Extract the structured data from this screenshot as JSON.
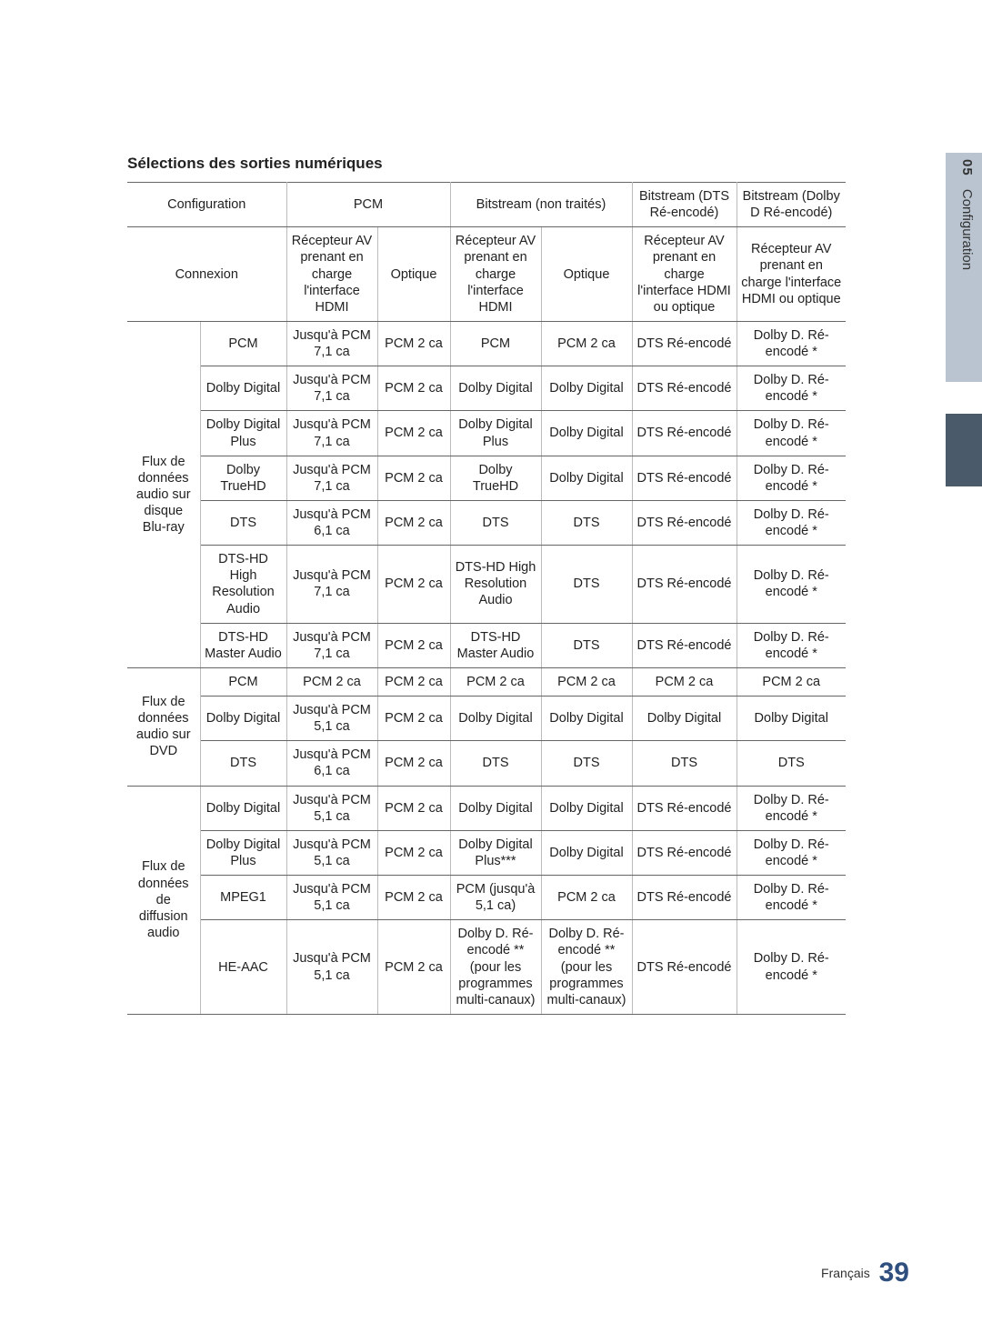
{
  "sideTab": {
    "num": "05",
    "label": "Configuration"
  },
  "title": "Sélections des sorties numériques",
  "footer": {
    "lang": "Français",
    "page": "39"
  },
  "head1": {
    "config": "Configuration",
    "pcm": "PCM",
    "bitstreamNT": "Bitstream (non traités)",
    "bitstreamDTS": "Bitstream (DTS Ré-encodé)",
    "bitstreamDolby": "Bitstream (Dolby D Ré-encodé)"
  },
  "head2": {
    "connexion": "Connexion",
    "hdmi": "Récepteur AV prenant en charge l'interface HDMI",
    "optique": "Optique",
    "hdmiOpt": "Récepteur AV prenant en charge l'interface HDMI ou optique",
    "hdmiOpt2": "Récepteur AV prenant en charge l'interface HDMI ou optique"
  },
  "groups": [
    {
      "label": "Flux de données audio sur disque Blu-ray",
      "rows": 7
    },
    {
      "label": "Flux de données audio sur DVD",
      "rows": 3
    },
    {
      "label": "Flux de données de diffusion audio",
      "rows": 4
    }
  ],
  "rows": [
    [
      "PCM",
      "Jusqu'à PCM 7,1 ca",
      "PCM 2 ca",
      "PCM",
      "PCM 2 ca",
      "DTS Ré-encodé",
      "Dolby D. Ré-encodé *"
    ],
    [
      "Dolby Digital",
      "Jusqu'à PCM 7,1 ca",
      "PCM 2 ca",
      "Dolby Digital",
      "Dolby Digital",
      "DTS Ré-encodé",
      "Dolby D. Ré-encodé *"
    ],
    [
      "Dolby Digital Plus",
      "Jusqu'à PCM 7,1 ca",
      "PCM 2 ca",
      "Dolby Digital Plus",
      "Dolby Digital",
      "DTS Ré-encodé",
      "Dolby D. Ré-encodé *"
    ],
    [
      "Dolby TrueHD",
      "Jusqu'à PCM 7,1 ca",
      "PCM 2 ca",
      "Dolby TrueHD",
      "Dolby Digital",
      "DTS Ré-encodé",
      "Dolby D. Ré-encodé *"
    ],
    [
      "DTS",
      "Jusqu'à PCM 6,1 ca",
      "PCM 2 ca",
      "DTS",
      "DTS",
      "DTS Ré-encodé",
      "Dolby D. Ré-encodé *"
    ],
    [
      "DTS-HD High Resolution Audio",
      "Jusqu'à PCM 7,1 ca",
      "PCM 2 ca",
      "DTS-HD High Resolution Audio",
      "DTS",
      "DTS Ré-encodé",
      "Dolby D. Ré-encodé *"
    ],
    [
      "DTS-HD Master Audio",
      "Jusqu'à PCM 7,1 ca",
      "PCM 2 ca",
      "DTS-HD Master Audio",
      "DTS",
      "DTS Ré-encodé",
      "Dolby D. Ré-encodé *"
    ],
    [
      "PCM",
      "PCM 2 ca",
      "PCM 2 ca",
      "PCM 2 ca",
      "PCM 2 ca",
      "PCM 2 ca",
      "PCM 2 ca"
    ],
    [
      "Dolby Digital",
      "Jusqu'à PCM 5,1 ca",
      "PCM 2 ca",
      "Dolby Digital",
      "Dolby Digital",
      "Dolby Digital",
      "Dolby Digital"
    ],
    [
      "DTS",
      "Jusqu'à PCM 6,1 ca",
      "PCM 2 ca",
      "DTS",
      "DTS",
      "DTS",
      "DTS"
    ],
    [
      "Dolby Digital",
      "Jusqu'à PCM 5,1 ca",
      "PCM 2 ca",
      "Dolby Digital",
      "Dolby Digital",
      "DTS Ré-encodé",
      "Dolby D. Ré-encodé *"
    ],
    [
      "Dolby Digital Plus",
      "Jusqu'à PCM 5,1 ca",
      "PCM 2 ca",
      "Dolby Digital Plus***",
      "Dolby Digital",
      "DTS Ré-encodé",
      "Dolby D. Ré-encodé *"
    ],
    [
      "MPEG1",
      "Jusqu'à PCM 5,1 ca",
      "PCM 2 ca",
      "PCM (jusqu'à 5,1 ca)",
      "PCM 2 ca",
      "DTS Ré-encodé",
      "Dolby D. Ré-encodé *"
    ],
    [
      "HE-AAC",
      "Jusqu'à PCM 5,1 ca",
      "PCM 2 ca",
      "Dolby D. Ré-encodé ** (pour les programmes multi-canaux)",
      "Dolby D. Ré-encodé ** (pour les programmes multi-canaux)",
      "DTS Ré-encodé",
      "Dolby D. Ré-encodé *"
    ]
  ]
}
